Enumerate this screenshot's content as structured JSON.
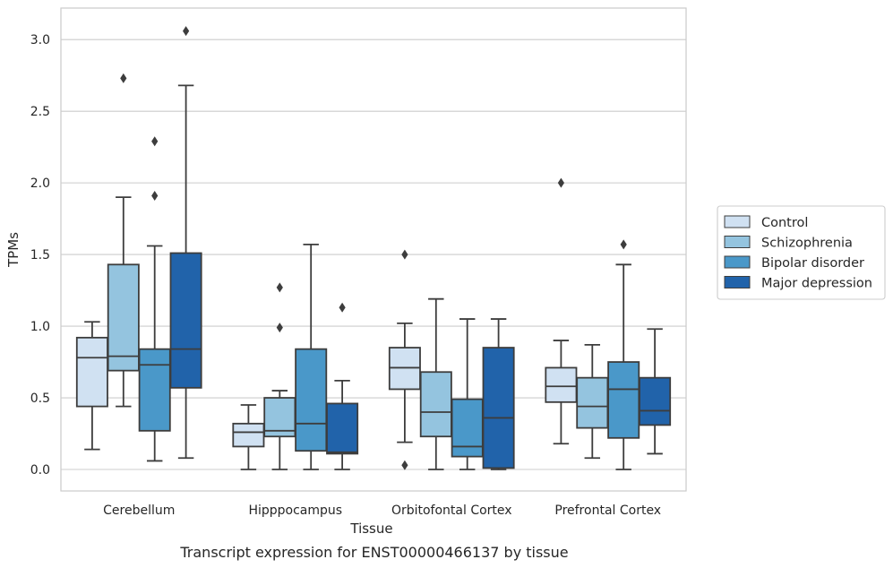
{
  "chart_data": {
    "type": "boxplot",
    "title": "",
    "caption": "Transcript expression for ENST00000466137 by tissue",
    "xlabel": "Tissue",
    "ylabel": "TPMs",
    "ylim": [
      -0.15,
      3.22
    ],
    "yticks": [
      "0.0",
      "0.5",
      "1.0",
      "1.5",
      "2.0",
      "2.5",
      "3.0"
    ],
    "grid": true,
    "legend_position": "right",
    "categories": [
      "Cerebellum",
      "Hipppocampus",
      "Orbitofontal Cortex",
      "Prefrontal Cortex"
    ],
    "series": [
      {
        "name": "Control",
        "color": "#d0e1f2",
        "boxes": [
          {
            "whislo": 0.14,
            "q1": 0.44,
            "med": 0.78,
            "q3": 0.92,
            "whishi": 1.03,
            "fliers": []
          },
          {
            "whislo": 0.0,
            "q1": 0.16,
            "med": 0.26,
            "q3": 0.32,
            "whishi": 0.45,
            "fliers": []
          },
          {
            "whislo": 0.19,
            "q1": 0.56,
            "med": 0.71,
            "q3": 0.85,
            "whishi": 1.02,
            "fliers": [
              1.5,
              0.03
            ]
          },
          {
            "whislo": 0.18,
            "q1": 0.47,
            "med": 0.58,
            "q3": 0.71,
            "whishi": 0.9,
            "fliers": [
              2.0
            ]
          }
        ]
      },
      {
        "name": "Schizophrenia",
        "color": "#94c4df",
        "boxes": [
          {
            "whislo": 0.44,
            "q1": 0.69,
            "med": 0.79,
            "q3": 1.43,
            "whishi": 1.9,
            "fliers": [
              2.73
            ]
          },
          {
            "whislo": 0.0,
            "q1": 0.23,
            "med": 0.27,
            "q3": 0.5,
            "whishi": 0.55,
            "fliers": [
              1.27,
              0.99
            ]
          },
          {
            "whislo": 0.0,
            "q1": 0.23,
            "med": 0.4,
            "q3": 0.68,
            "whishi": 1.19,
            "fliers": []
          },
          {
            "whislo": 0.08,
            "q1": 0.29,
            "med": 0.44,
            "q3": 0.64,
            "whishi": 0.87,
            "fliers": []
          }
        ]
      },
      {
        "name": "Bipolar disorder",
        "color": "#4a98c9",
        "boxes": [
          {
            "whislo": 0.06,
            "q1": 0.27,
            "med": 0.73,
            "q3": 0.84,
            "whishi": 1.56,
            "fliers": [
              2.29,
              1.91
            ]
          },
          {
            "whislo": 0.0,
            "q1": 0.13,
            "med": 0.32,
            "q3": 0.84,
            "whishi": 1.57,
            "fliers": []
          },
          {
            "whislo": 0.0,
            "q1": 0.09,
            "med": 0.16,
            "q3": 0.49,
            "whishi": 1.05,
            "fliers": []
          },
          {
            "whislo": 0.0,
            "q1": 0.22,
            "med": 0.56,
            "q3": 0.75,
            "whishi": 1.43,
            "fliers": [
              1.57
            ]
          }
        ]
      },
      {
        "name": "Major depression",
        "color": "#2163aa",
        "boxes": [
          {
            "whislo": 0.08,
            "q1": 0.57,
            "med": 0.84,
            "q3": 1.51,
            "whishi": 2.68,
            "fliers": [
              3.06
            ]
          },
          {
            "whislo": 0.0,
            "q1": 0.11,
            "med": 0.12,
            "q3": 0.46,
            "whishi": 0.62,
            "fliers": [
              1.13
            ]
          },
          {
            "whislo": 0.0,
            "q1": 0.01,
            "med": 0.36,
            "q3": 0.85,
            "whishi": 1.05,
            "fliers": []
          },
          {
            "whislo": 0.11,
            "q1": 0.31,
            "med": 0.41,
            "q3": 0.64,
            "whishi": 0.98,
            "fliers": []
          }
        ]
      }
    ]
  }
}
